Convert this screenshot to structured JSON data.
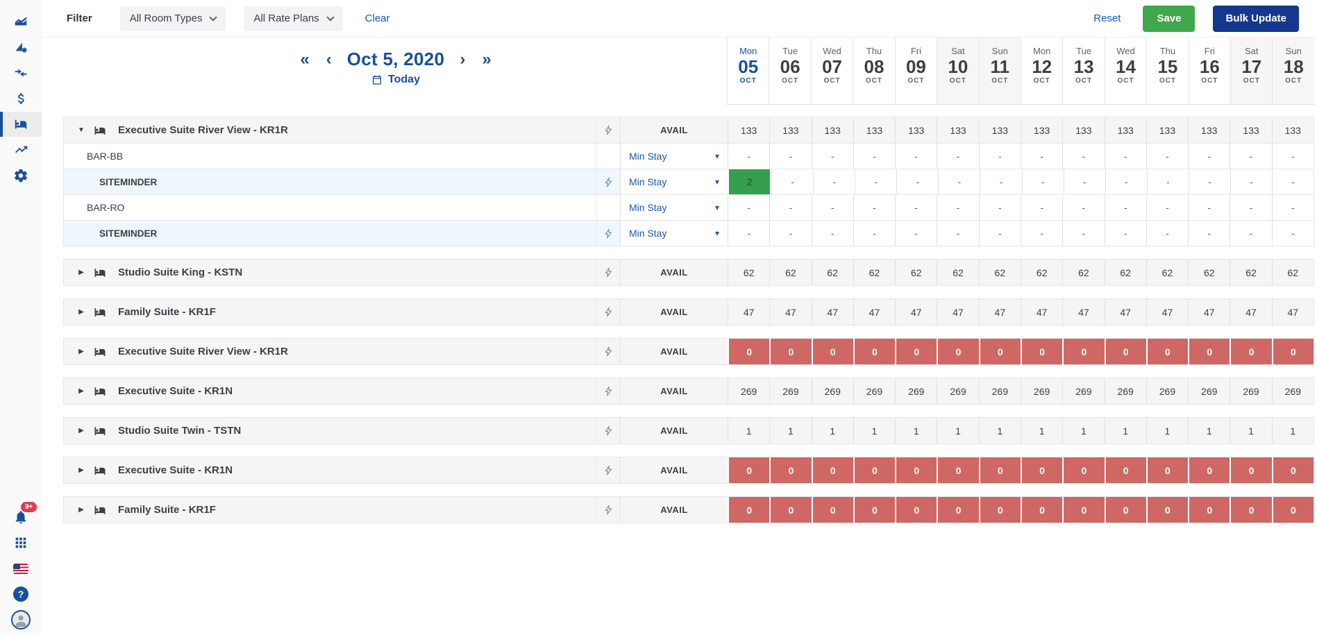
{
  "colors": {
    "primary_blue": "#17509b",
    "link_blue": "#1756b8",
    "save_green": "#3fa84a",
    "bulk_navy": "#15388f",
    "zero_red": "#cf6765",
    "cell_green": "#34a04d",
    "badge_red": "#e23a50",
    "channel_tint": "#eef7fb"
  },
  "sidebar": {
    "top_items": [
      {
        "name": "area-chart-icon"
      },
      {
        "name": "analytics-settings-icon"
      },
      {
        "name": "transfer-arrows-icon"
      },
      {
        "name": "dollar-icon"
      },
      {
        "name": "bed-icon",
        "active": true
      },
      {
        "name": "trending-up-icon"
      },
      {
        "name": "gear-icon"
      }
    ],
    "notifications_badge": "9+",
    "bottom_items": [
      "bell-icon",
      "apps-grid-icon",
      "us-flag-icon",
      "help-icon",
      "user-avatar"
    ]
  },
  "topbar": {
    "filter_label": "Filter",
    "room_types": "All Room Types",
    "rate_plans": "All Rate Plans",
    "clear": "Clear",
    "reset": "Reset",
    "save": "Save",
    "bulk_update": "Bulk Update"
  },
  "calendar": {
    "date_label": "Oct 5, 2020",
    "today_label": "Today",
    "days": [
      {
        "dow": "Mon",
        "day": "05",
        "month": "OCT",
        "today": true,
        "weekend": false
      },
      {
        "dow": "Tue",
        "day": "06",
        "month": "OCT",
        "today": false,
        "weekend": false
      },
      {
        "dow": "Wed",
        "day": "07",
        "month": "OCT",
        "today": false,
        "weekend": false
      },
      {
        "dow": "Thu",
        "day": "08",
        "month": "OCT",
        "today": false,
        "weekend": false
      },
      {
        "dow": "Fri",
        "day": "09",
        "month": "OCT",
        "today": false,
        "weekend": false
      },
      {
        "dow": "Sat",
        "day": "10",
        "month": "OCT",
        "today": false,
        "weekend": true
      },
      {
        "dow": "Sun",
        "day": "11",
        "month": "OCT",
        "today": false,
        "weekend": true
      },
      {
        "dow": "Mon",
        "day": "12",
        "month": "OCT",
        "today": false,
        "weekend": false
      },
      {
        "dow": "Tue",
        "day": "13",
        "month": "OCT",
        "today": false,
        "weekend": false
      },
      {
        "dow": "Wed",
        "day": "14",
        "month": "OCT",
        "today": false,
        "weekend": false
      },
      {
        "dow": "Thu",
        "day": "15",
        "month": "OCT",
        "today": false,
        "weekend": false
      },
      {
        "dow": "Fri",
        "day": "16",
        "month": "OCT",
        "today": false,
        "weekend": false
      },
      {
        "dow": "Sat",
        "day": "17",
        "month": "OCT",
        "today": false,
        "weekend": true
      },
      {
        "dow": "Sun",
        "day": "18",
        "month": "OCT",
        "today": false,
        "weekend": true
      }
    ]
  },
  "grid": {
    "avail_label": "AVAIL",
    "min_stay_label": "Min Stay",
    "groups": [
      {
        "name": "Executive Suite River View - KR1R",
        "expanded": true,
        "zero": false,
        "avail_values": [
          "133",
          "133",
          "133",
          "133",
          "133",
          "133",
          "133",
          "133",
          "133",
          "133",
          "133",
          "133",
          "133",
          "133"
        ],
        "rates": [
          {
            "label": "BAR-BB",
            "is_channel": false,
            "values": [
              "-",
              "-",
              "-",
              "-",
              "-",
              "-",
              "-",
              "-",
              "-",
              "-",
              "-",
              "-",
              "-",
              "-"
            ],
            "green_cells": []
          },
          {
            "label": "SITEMINDER",
            "is_channel": true,
            "values": [
              "2",
              "-",
              "-",
              "-",
              "-",
              "-",
              "-",
              "-",
              "-",
              "-",
              "-",
              "-",
              "-",
              "-"
            ],
            "green_cells": [
              0
            ]
          },
          {
            "label": "BAR-RO",
            "is_channel": false,
            "values": [
              "-",
              "-",
              "-",
              "-",
              "-",
              "-",
              "-",
              "-",
              "-",
              "-",
              "-",
              "-",
              "-",
              "-"
            ],
            "green_cells": []
          },
          {
            "label": "SITEMINDER",
            "is_channel": true,
            "values": [
              "-",
              "-",
              "-",
              "-",
              "-",
              "-",
              "-",
              "-",
              "-",
              "-",
              "-",
              "-",
              "-",
              "-"
            ],
            "green_cells": []
          }
        ]
      },
      {
        "name": "Studio Suite King - KSTN",
        "expanded": false,
        "zero": false,
        "avail_values": [
          "62",
          "62",
          "62",
          "62",
          "62",
          "62",
          "62",
          "62",
          "62",
          "62",
          "62",
          "62",
          "62",
          "62"
        ],
        "rates": []
      },
      {
        "name": "Family Suite - KR1F",
        "expanded": false,
        "zero": false,
        "avail_values": [
          "47",
          "47",
          "47",
          "47",
          "47",
          "47",
          "47",
          "47",
          "47",
          "47",
          "47",
          "47",
          "47",
          "47"
        ],
        "rates": []
      },
      {
        "name": "Executive Suite River View - KR1R",
        "expanded": false,
        "zero": true,
        "avail_values": [
          "0",
          "0",
          "0",
          "0",
          "0",
          "0",
          "0",
          "0",
          "0",
          "0",
          "0",
          "0",
          "0",
          "0"
        ],
        "rates": []
      },
      {
        "name": "Executive Suite - KR1N",
        "expanded": false,
        "zero": false,
        "avail_values": [
          "269",
          "269",
          "269",
          "269",
          "269",
          "269",
          "269",
          "269",
          "269",
          "269",
          "269",
          "269",
          "269",
          "269"
        ],
        "rates": []
      },
      {
        "name": "Studio Suite Twin - TSTN",
        "expanded": false,
        "zero": false,
        "avail_values": [
          "1",
          "1",
          "1",
          "1",
          "1",
          "1",
          "1",
          "1",
          "1",
          "1",
          "1",
          "1",
          "1",
          "1"
        ],
        "rates": []
      },
      {
        "name": "Executive Suite - KR1N",
        "expanded": false,
        "zero": true,
        "avail_values": [
          "0",
          "0",
          "0",
          "0",
          "0",
          "0",
          "0",
          "0",
          "0",
          "0",
          "0",
          "0",
          "0",
          "0"
        ],
        "rates": []
      },
      {
        "name": "Family Suite - KR1F",
        "expanded": false,
        "zero": true,
        "avail_values": [
          "0",
          "0",
          "0",
          "0",
          "0",
          "0",
          "0",
          "0",
          "0",
          "0",
          "0",
          "0",
          "0",
          "0"
        ],
        "rates": []
      }
    ]
  }
}
